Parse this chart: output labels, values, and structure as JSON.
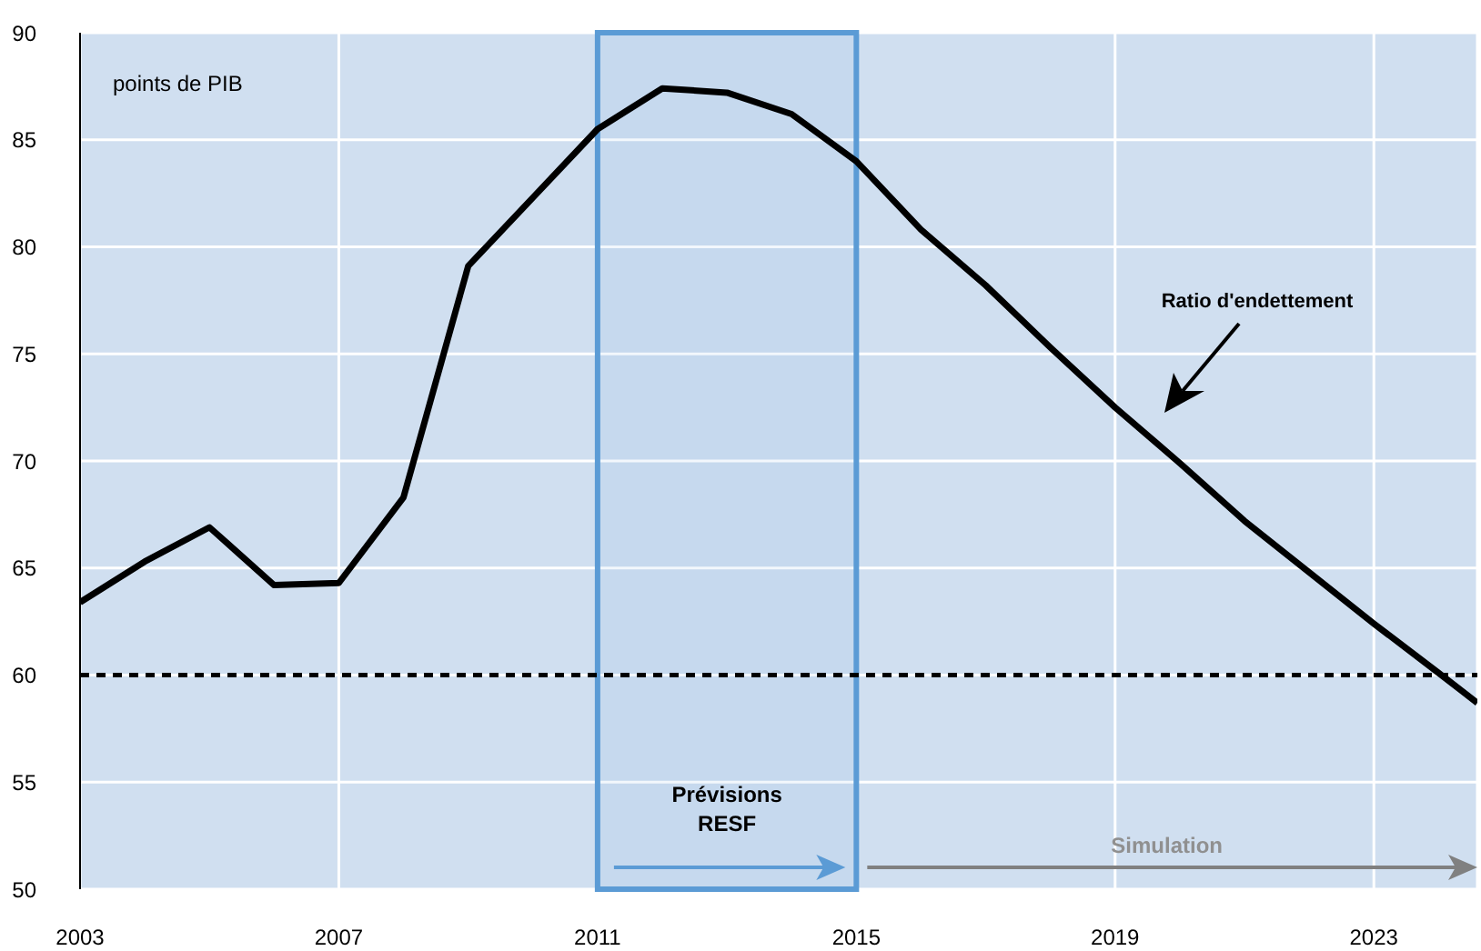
{
  "chart_data": {
    "type": "line",
    "ylabel": "points de PIB",
    "x": [
      2003,
      2004,
      2005,
      2006,
      2007,
      2008,
      2009,
      2010,
      2011,
      2012,
      2013,
      2014,
      2015,
      2016,
      2017,
      2018,
      2019,
      2020,
      2021,
      2022,
      2023,
      2024,
      2024.6
    ],
    "series": [
      {
        "color": "#000000",
        "values": [
          63.4,
          65.3,
          66.9,
          64.2,
          64.3,
          68.3,
          79.1,
          82.3,
          85.5,
          87.4,
          87.2,
          86.2,
          84.0,
          80.8,
          78.2,
          75.3,
          72.5,
          69.9,
          67.2,
          64.8,
          62.4,
          60.1,
          58.7
        ]
      }
    ],
    "xlim": [
      2003,
      2024.6
    ],
    "xticks": [
      2003,
      2007,
      2011,
      2015,
      2019,
      2023
    ],
    "ylim": [
      50,
      90
    ],
    "yticks": [
      50,
      55,
      60,
      65,
      70,
      75,
      80,
      85,
      90
    ],
    "grid": true,
    "marker": "none",
    "line_style": "solid",
    "ref_lines": [
      {
        "axis": "y",
        "value": 60,
        "color": "#000000",
        "line_style": "dashed"
      }
    ],
    "bands": [
      {
        "axis": "x",
        "from": 2011,
        "to": 2015,
        "label": "Prévisions RESF",
        "color": "#5b9bd5"
      }
    ],
    "annotations": [
      "Ratio d'endettement",
      "Simulation"
    ]
  }
}
